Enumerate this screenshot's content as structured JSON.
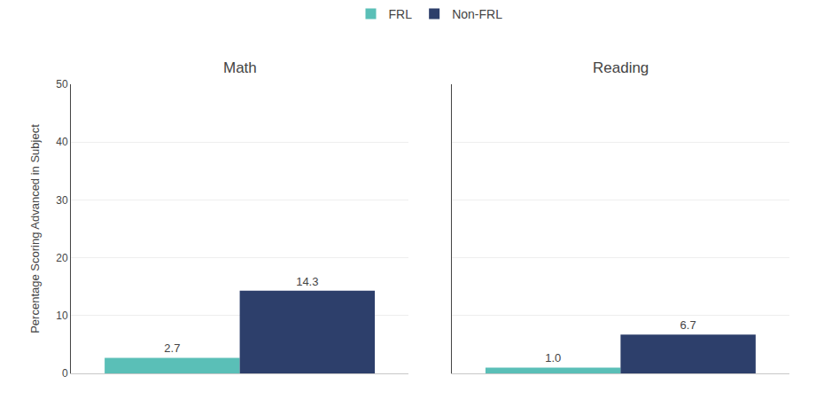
{
  "chart_data": [
    {
      "type": "bar",
      "title": "Math",
      "ylabel": "Percentage Scoring Advanced in Subject",
      "categories": [
        null
      ],
      "series": [
        {
          "name": "FRL",
          "color": "#5abfb7",
          "values": [
            2.7
          ]
        },
        {
          "name": "Non-FRL",
          "color": "#2d3f6b",
          "values": [
            14.3
          ]
        }
      ],
      "ylim": [
        0,
        50
      ],
      "yticks": [
        0,
        10,
        20,
        30,
        40,
        50
      ],
      "grid": true,
      "data_labels": true,
      "tick_labels": "y",
      "legend": "top"
    },
    {
      "type": "bar",
      "title": "Reading",
      "categories": [
        null
      ],
      "series": [
        {
          "name": "FRL",
          "color": "#5abfb7",
          "values": [
            1.0
          ],
          "value_labels": [
            "1.0"
          ]
        },
        {
          "name": "Non-FRL",
          "color": "#2d3f6b",
          "values": [
            6.7
          ]
        }
      ],
      "ylim": [
        0,
        50
      ],
      "yticks": [
        0,
        10,
        20,
        30,
        40,
        50
      ],
      "grid": true,
      "data_labels": true,
      "tick_labels": false
    }
  ]
}
